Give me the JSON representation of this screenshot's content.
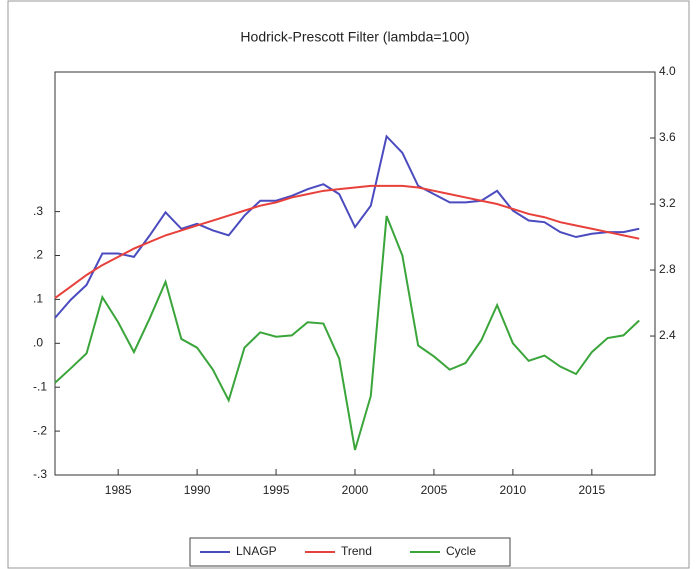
{
  "chart_data": {
    "type": "line",
    "title": "Hodrick-Prescott Filter (lambda=100)",
    "x": [
      1981,
      1982,
      1983,
      1984,
      1985,
      1986,
      1987,
      1988,
      1989,
      1990,
      1991,
      1992,
      1993,
      1994,
      1995,
      1996,
      1997,
      1998,
      1999,
      2000,
      2001,
      2002,
      2003,
      2004,
      2005,
      2006,
      2007,
      2008,
      2009,
      2010,
      2011,
      2012,
      2013,
      2014,
      2015,
      2016,
      2017,
      2018
    ],
    "xlim": [
      1981,
      2019
    ],
    "xticks": [
      1985,
      1990,
      1995,
      2000,
      2005,
      2010,
      2015
    ],
    "ylim": [
      -0.3,
      0.618
    ],
    "yticks": [
      {
        "value": -0.3,
        "label": "-.3"
      },
      {
        "value": -0.2,
        "label": "-.2"
      },
      {
        "value": -0.1,
        "label": "-.1"
      },
      {
        "value": 0,
        "label": ".0"
      },
      {
        "value": 0.1,
        "label": ".1"
      },
      {
        "value": 0.2,
        "label": ".2"
      },
      {
        "value": 0.3,
        "label": ".3"
      }
    ],
    "y2lim": [
      1.558,
      4.0
    ],
    "y2ticks": [
      2.4,
      2.8,
      3.2,
      3.6,
      {
        "value": 4.0,
        "label": "4.0"
      }
    ],
    "series": [
      {
        "name": "LNAGP",
        "color": "#4b4bc0",
        "axis": "y2",
        "values": [
          2.51,
          2.62,
          2.71,
          2.9,
          2.9,
          2.88,
          3.01,
          3.15,
          3.05,
          3.08,
          3.04,
          3.01,
          3.13,
          3.22,
          3.22,
          3.25,
          3.29,
          3.32,
          3.26,
          3.06,
          3.19,
          3.61,
          3.51,
          3.31,
          3.26,
          3.21,
          3.21,
          3.22,
          3.28,
          3.16,
          3.1,
          3.09,
          3.03,
          3.0,
          3.02,
          3.03,
          3.03,
          3.05
        ]
      },
      {
        "name": "Trend",
        "color": "#e8403a",
        "axis": "y2",
        "values": [
          2.63,
          2.7,
          2.77,
          2.83,
          2.88,
          2.93,
          2.97,
          3.01,
          3.04,
          3.07,
          3.1,
          3.13,
          3.16,
          3.19,
          3.21,
          3.24,
          3.26,
          3.28,
          3.29,
          3.3,
          3.31,
          3.31,
          3.31,
          3.3,
          3.28,
          3.26,
          3.24,
          3.22,
          3.2,
          3.17,
          3.14,
          3.12,
          3.09,
          3.07,
          3.05,
          3.03,
          3.01,
          2.99
        ]
      },
      {
        "name": "Cycle",
        "color": "#3aa53a",
        "axis": "y",
        "values": [
          -0.09,
          -0.057,
          -0.023,
          0.105,
          0.048,
          -0.02,
          0.057,
          0.14,
          0.01,
          -0.01,
          -0.06,
          -0.13,
          -0.01,
          0.025,
          0.015,
          0.018,
          0.048,
          0.045,
          -0.035,
          -0.243,
          -0.12,
          0.29,
          0.2,
          -0.005,
          -0.03,
          -0.06,
          -0.045,
          0.007,
          0.087,
          0,
          -0.04,
          -0.028,
          -0.053,
          -0.07,
          -0.02,
          0.012,
          0.018,
          0.052
        ]
      }
    ]
  }
}
